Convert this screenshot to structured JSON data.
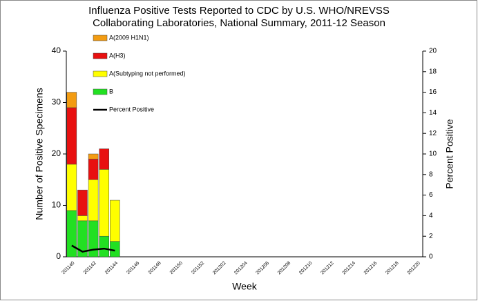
{
  "chart_data": {
    "type": "bar",
    "title": [
      "Influenza Positive Tests Reported to CDC by U.S. WHO/NREVSS",
      "Collaborating Laboratories, National Summary, 2011-12 Season"
    ],
    "x_label": "Week",
    "y_label": "Number of Positive Specimens",
    "y2_label": "Percent Positive",
    "categories": [
      "201140",
      null,
      "201142",
      null,
      "201144",
      null,
      "201146",
      null,
      "201148",
      null,
      "201150",
      null,
      "201152",
      null,
      "201202",
      null,
      "201204",
      null,
      "201206",
      null,
      "201208",
      null,
      "201210",
      null,
      "201212",
      null,
      "201214",
      null,
      "201216",
      null,
      "201218",
      null,
      "201220"
    ],
    "stacked": true,
    "legend": "top-left",
    "series": [
      {
        "name": "A(2009 H1N1)",
        "color": "#f39c12",
        "values": [
          3,
          0,
          1,
          0,
          0,
          null,
          null,
          null,
          null,
          null,
          null,
          null,
          null,
          null,
          null,
          null,
          null,
          null,
          null,
          null,
          null,
          null,
          null,
          null,
          null,
          null,
          null,
          null,
          null,
          null,
          null,
          null,
          null
        ]
      },
      {
        "name": "A(H3)",
        "color": "#e81010",
        "values": [
          11,
          5,
          4,
          4,
          0,
          null,
          null,
          null,
          null,
          null,
          null,
          null,
          null,
          null,
          null,
          null,
          null,
          null,
          null,
          null,
          null,
          null,
          null,
          null,
          null,
          null,
          null,
          null,
          null,
          null,
          null,
          null,
          null
        ]
      },
      {
        "name": "A(Subtyping not performed)",
        "color": "#ffff00",
        "values": [
          9,
          1,
          8,
          13,
          8,
          null,
          null,
          null,
          null,
          null,
          null,
          null,
          null,
          null,
          null,
          null,
          null,
          null,
          null,
          null,
          null,
          null,
          null,
          null,
          null,
          null,
          null,
          null,
          null,
          null,
          null,
          null,
          null
        ]
      },
      {
        "name": "B",
        "color": "#22e022",
        "values": [
          9,
          7,
          7,
          4,
          3,
          null,
          null,
          null,
          null,
          null,
          null,
          null,
          null,
          null,
          null,
          null,
          null,
          null,
          null,
          null,
          null,
          null,
          null,
          null,
          null,
          null,
          null,
          null,
          null,
          null,
          null,
          null,
          null
        ]
      },
      {
        "name": "Percent Positive",
        "type": "line",
        "axis": "y2",
        "color": "#000000",
        "values": [
          1.1,
          0.5,
          0.7,
          0.8,
          0.6,
          null,
          null,
          null,
          null,
          null,
          null,
          null,
          null,
          null,
          null,
          null,
          null,
          null,
          null,
          null,
          null,
          null,
          null,
          null,
          null,
          null,
          null,
          null,
          null,
          null,
          null,
          null,
          null
        ]
      }
    ],
    "ylim": [
      0,
      40
    ],
    "yticks": [
      0,
      10,
      20,
      30,
      40
    ],
    "y2lim": [
      0,
      20
    ],
    "y2ticks": [
      0,
      2,
      4,
      6,
      8,
      10,
      12,
      14,
      16,
      18,
      20
    ]
  }
}
